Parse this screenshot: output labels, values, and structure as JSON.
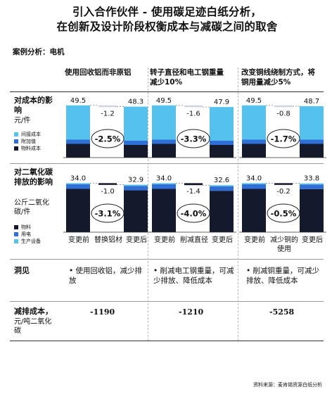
{
  "title_line1": "引入合作伙伴 - 使用碳足迹白纸分析，",
  "title_line2": "在创新及设计阶段权衡成本与减碳之间的取舍",
  "case_label": "案例分析：电机",
  "columns": [
    {
      "header": "使用回收铝而非原铝",
      "x_labels": [
        "变更前",
        "替换铝材",
        "变更后"
      ],
      "insight": "• 使用回收铝，减少排放",
      "abatement_cost": "-1190"
    },
    {
      "header": "转子直径和电工钢重量减少10%",
      "x_labels": [
        "变更前",
        "削减直径",
        "变更后"
      ],
      "insight": "• 削减电工钢重量，可减少排放、降低成本",
      "abatement_cost": "-1210"
    },
    {
      "header": "改变铜线绕制方式，将铜用量减少5%",
      "x_labels": [
        "变更前",
        "减少铜的使用",
        "变更后"
      ],
      "insight": "• 削减铜重量，可减少排放、降低成本",
      "abatement_cost": "-5258"
    }
  ],
  "rows": {
    "cost": {
      "label": "对成本的影响",
      "unit": "元/件",
      "legend": [
        "间接成本",
        "附加值",
        "物料成本"
      ]
    },
    "emission": {
      "label": "对二氧化碳排放的影响",
      "unit": "公斤二氧化碳/件",
      "legend": [
        "物料",
        "用电",
        "生产设备"
      ]
    },
    "insight": {
      "label": "洞见"
    },
    "abatement": {
      "label": "减排成本，",
      "unit": "元/吨二氧化碳"
    }
  },
  "colors": {
    "dark": "#14192b",
    "mid": "#2f6fd6",
    "light": "#55c2ee",
    "delta": "#cfd4dc"
  },
  "source": "资料来源：麦肯锡资源白纸分析",
  "chart_data": [
    {
      "type": "bar",
      "title": "使用回收铝而非原铝 — 对成本的影响",
      "categories": [
        "变更前",
        "替换铝材",
        "变更后"
      ],
      "totals": [
        49.5,
        -1.2,
        48.3
      ],
      "change_label": "-2.5%",
      "series": [
        {
          "name": "物料成本",
          "values": [
            13,
            0,
            12
          ]
        },
        {
          "name": "附加值",
          "values": [
            4,
            0,
            4
          ]
        },
        {
          "name": "间接成本",
          "values": [
            32.5,
            0,
            32.3
          ]
        }
      ]
    },
    {
      "type": "bar",
      "title": "转子直径和电工钢重量减少10% — 对成本的影响",
      "categories": [
        "变更前",
        "削减直径",
        "变更后"
      ],
      "totals": [
        49.5,
        -1.6,
        47.9
      ],
      "change_label": "-3.3%",
      "series": [
        {
          "name": "物料成本",
          "values": [
            13,
            0,
            12
          ]
        },
        {
          "name": "附加值",
          "values": [
            4,
            0,
            4
          ]
        },
        {
          "name": "间接成本",
          "values": [
            32.5,
            0,
            31.9
          ]
        }
      ]
    },
    {
      "type": "bar",
      "title": "改变铜线绕制方式，将铜用量减少5% — 对成本的影响",
      "categories": [
        "变更前",
        "减少铜的使用",
        "变更后"
      ],
      "totals": [
        49.5,
        -0.8,
        48.7
      ],
      "change_label": "-1.7%",
      "series": [
        {
          "name": "物料成本",
          "values": [
            13,
            0,
            13
          ]
        },
        {
          "name": "附加值",
          "values": [
            4,
            0,
            4
          ]
        },
        {
          "name": "间接成本",
          "values": [
            32.5,
            0,
            31.7
          ]
        }
      ]
    },
    {
      "type": "bar",
      "title": "使用回收铝而非原铝 — 对二氧化碳排放的影响",
      "categories": [
        "变更前",
        "替换铝材",
        "变更后"
      ],
      "totals": [
        34.0,
        -1.0,
        32.9
      ],
      "change_label": "-3.1%",
      "series": [
        {
          "name": "物料",
          "values": [
            30,
            0,
            29
          ]
        },
        {
          "name": "用电",
          "values": [
            3.2,
            0,
            3.1
          ]
        },
        {
          "name": "生产设备",
          "values": [
            0.8,
            0,
            0.8
          ]
        }
      ]
    },
    {
      "type": "bar",
      "title": "转子直径和电工钢重量减少10% — 对二氧化碳排放的影响",
      "categories": [
        "变更前",
        "削减直径",
        "变更后"
      ],
      "totals": [
        34.0,
        -1.4,
        32.6
      ],
      "change_label": "-4.0%",
      "series": [
        {
          "name": "物料",
          "values": [
            30,
            0,
            28.7
          ]
        },
        {
          "name": "用电",
          "values": [
            3.2,
            0,
            3.1
          ]
        },
        {
          "name": "生产设备",
          "values": [
            0.8,
            0,
            0.8
          ]
        }
      ]
    },
    {
      "type": "bar",
      "title": "改变铜线绕制方式，将铜用量减少5% — 对二氧化碳排放的影响",
      "categories": [
        "变更前",
        "减少铜的使用",
        "变更后"
      ],
      "totals": [
        34.0,
        -0.2,
        33.8
      ],
      "change_label": "-0.5%",
      "series": [
        {
          "name": "物料",
          "values": [
            30,
            0,
            29.8
          ]
        },
        {
          "name": "用电",
          "values": [
            3.2,
            0,
            3.2
          ]
        },
        {
          "name": "生产设备",
          "values": [
            0.8,
            0,
            0.8
          ]
        }
      ]
    }
  ]
}
